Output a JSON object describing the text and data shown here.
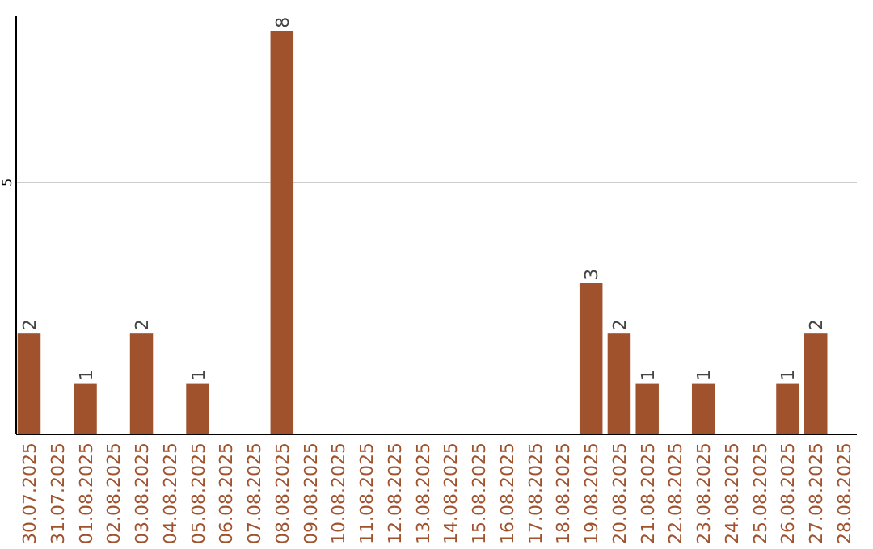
{
  "chart_data": {
    "type": "bar",
    "categories": [
      "30.07.2025",
      "31.07.2025",
      "01.08.2025",
      "02.08.2025",
      "03.08.2025",
      "04.08.2025",
      "05.08.2025",
      "06.08.2025",
      "07.08.2025",
      "08.08.2025",
      "09.08.2025",
      "10.08.2025",
      "11.08.2025",
      "12.08.2025",
      "13.08.2025",
      "14.08.2025",
      "15.08.2025",
      "16.08.2025",
      "17.08.2025",
      "18.08.2025",
      "19.08.2025",
      "20.08.2025",
      "21.08.2025",
      "22.08.2025",
      "23.08.2025",
      "24.08.2025",
      "25.08.2025",
      "26.08.2025",
      "27.08.2025",
      "28.08.2025"
    ],
    "values": [
      2,
      0,
      1,
      0,
      2,
      0,
      1,
      0,
      0,
      8,
      0,
      0,
      0,
      0,
      0,
      0,
      0,
      0,
      0,
      0,
      3,
      2,
      1,
      0,
      1,
      0,
      0,
      1,
      2,
      0
    ],
    "value_labels": [
      "2",
      null,
      "1",
      null,
      "2",
      null,
      "1",
      null,
      null,
      "8",
      null,
      null,
      null,
      null,
      null,
      null,
      null,
      null,
      null,
      null,
      "3",
      "2",
      "1",
      null,
      "1",
      null,
      null,
      "1",
      "2",
      null
    ],
    "color": "#a0522d",
    "ylim": [
      0,
      8.3
    ],
    "yticks": [
      5
    ],
    "grid": "y"
  }
}
